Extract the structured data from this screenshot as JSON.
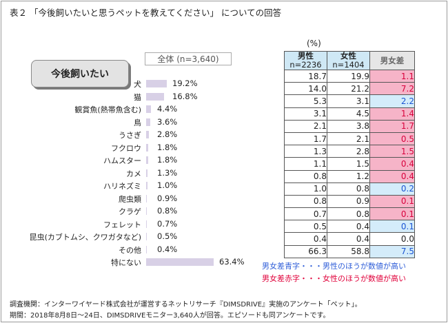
{
  "title": "表２ 「今後飼いたいと思うペットを教えてください」 についての回答",
  "category_label": "今後飼いたい",
  "total_label": "全体 (n=3,640)",
  "unit": "(%)",
  "table_header": {
    "male": "男性",
    "male_n": "n=2236",
    "female": "女性",
    "female_n": "n=1404",
    "diff": "男女差"
  },
  "chart_data": {
    "type": "bar",
    "orientation": "horizontal",
    "categories": [
      "犬",
      "猫",
      "観賞魚(熱帯魚含む)",
      "鳥",
      "うさぎ",
      "フクロウ",
      "ハムスター",
      "カメ",
      "ハリネズミ",
      "爬虫類",
      "クラゲ",
      "フェレット",
      "昆虫(カブトムシ、クワガタなど)",
      "その他",
      "特にない"
    ],
    "values": [
      19.2,
      16.8,
      4.4,
      3.6,
      2.8,
      1.8,
      1.8,
      1.3,
      1.0,
      0.9,
      0.8,
      0.7,
      0.5,
      0.4,
      63.4
    ],
    "value_labels": [
      "19.2%",
      "16.8%",
      "4.4%",
      "3.6%",
      "2.8%",
      "1.8%",
      "1.8%",
      "1.3%",
      "1.0%",
      "0.9%",
      "0.8%",
      "0.7%",
      "0.5%",
      "0.4%",
      "63.4%"
    ],
    "series": [
      {
        "name": "全体 (n=3,640)",
        "values": [
          19.2,
          16.8,
          4.4,
          3.6,
          2.8,
          1.8,
          1.8,
          1.3,
          1.0,
          0.9,
          0.8,
          0.7,
          0.5,
          0.4,
          63.4
        ]
      }
    ],
    "bar_color": "#d8d0e6",
    "table": {
      "male": [
        "18.7",
        "14.0",
        "5.3",
        "3.1",
        "2.1",
        "1.7",
        "1.3",
        "1.1",
        "0.8",
        "1.0",
        "0.8",
        "0.7",
        "0.5",
        "0.4",
        "66.3"
      ],
      "female": [
        "19.9",
        "21.2",
        "3.1",
        "4.5",
        "3.8",
        "2.1",
        "2.8",
        "1.5",
        "1.2",
        "0.8",
        "0.9",
        "0.8",
        "0.4",
        "0.4",
        "58.8"
      ],
      "diff": [
        "1.1",
        "7.2",
        "2.2",
        "1.4",
        "1.7",
        "0.5",
        "1.5",
        "0.4",
        "0.4",
        "0.2",
        "0.1",
        "0.1",
        "0.1",
        "0.0",
        "7.5"
      ],
      "diff_color": [
        "red",
        "red",
        "blue",
        "red",
        "red",
        "red",
        "red",
        "red",
        "red",
        "blue",
        "red",
        "red",
        "blue",
        "plain",
        "blue"
      ]
    },
    "colors": {
      "red_text": "#d8003c",
      "red_bg": "#f6b4c8",
      "blue_text": "#1a54d4",
      "blue_bg": "#d4ecfa",
      "header_bg": "#cfe8f5"
    }
  },
  "legend": {
    "blue": "男女差青字・・・男性のほうが数値が高い",
    "red": "男女差赤字・・・女性のほうが数値が高い"
  },
  "footer": {
    "line1": "調査機関：インターワイヤード株式会社が運営するネットリサーチ『DIMSDRIVE』実施のアンケート「ペット」。",
    "line2": "期間：2018年8月8日～24日、DIMSDRIVEモニター3,640人が回答。エピソードも同アンケートです。"
  }
}
